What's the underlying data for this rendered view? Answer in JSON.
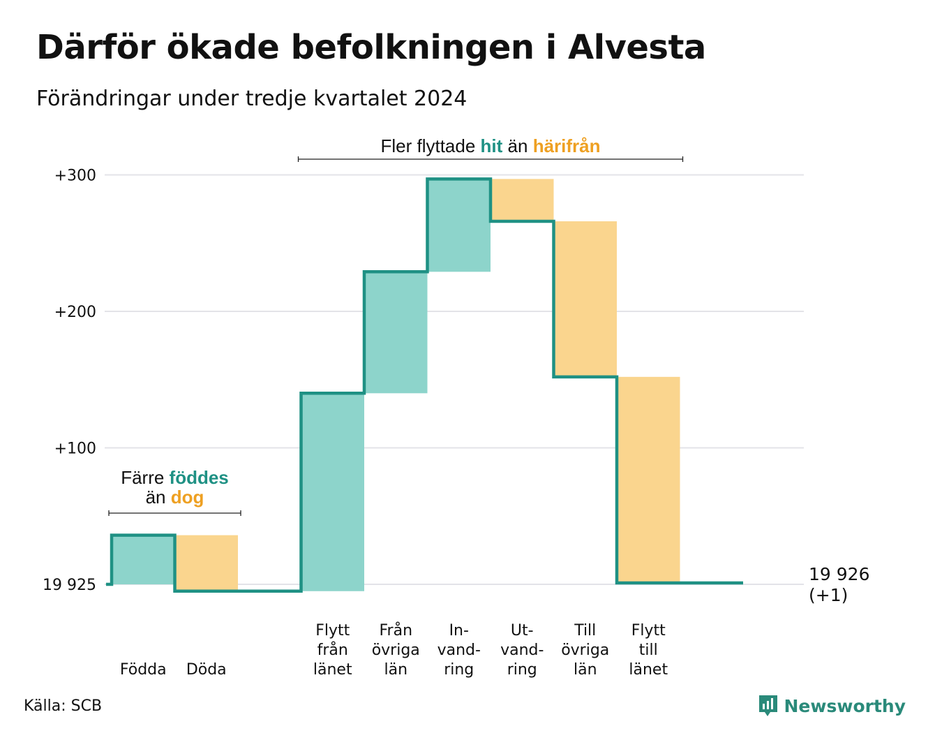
{
  "title": "Därför ökade befolkningen i Alvesta",
  "subtitle": "Förändringar under tredje kvartalet 2024",
  "source": "Källa: SCB",
  "brand": "Newsworthy",
  "brand_icon": "newsworthy-logo-icon",
  "colors": {
    "increase": "#8dd4cb",
    "decrease": "#fad58e",
    "line": "#1f9184",
    "grid": "#e3e3e8"
  },
  "chart_data": {
    "type": "waterfall",
    "baseline": 19925,
    "ylim": [
      -10,
      300
    ],
    "yticks": [
      {
        "value": 0,
        "label": "19 925"
      },
      {
        "value": 100,
        "label": "+100"
      },
      {
        "value": 200,
        "label": "+200"
      },
      {
        "value": 300,
        "label": "+300"
      }
    ],
    "steps": [
      {
        "label": [
          "Födda"
        ],
        "change": 36
      },
      {
        "label": [
          "Döda"
        ],
        "change": -41
      },
      {
        "label": [],
        "change": 0
      },
      {
        "label": [
          "Flytt",
          "från",
          "länet"
        ],
        "change": 145
      },
      {
        "label": [
          "Från",
          "övriga",
          "län"
        ],
        "change": 89
      },
      {
        "label": [
          "In-",
          "vand-",
          "ring"
        ],
        "change": 68
      },
      {
        "label": [
          "Ut-",
          "vand-",
          "ring"
        ],
        "change": -31
      },
      {
        "label": [
          "Till",
          "övriga",
          "län"
        ],
        "change": -114
      },
      {
        "label": [
          "Flytt",
          "till",
          "länet"
        ],
        "change": -151
      },
      {
        "label": [],
        "change": 0
      }
    ],
    "end_label": [
      "19 926",
      "(+1)"
    ],
    "annotations": [
      {
        "parts": [
          [
            "Färre ",
            ""
          ],
          [
            "föddes",
            "increase"
          ]
        ],
        "parts2": [
          [
            "än ",
            ""
          ],
          [
            "dog",
            "decrease"
          ]
        ],
        "steps": [
          0,
          1
        ]
      },
      {
        "parts": [
          [
            "Fler flyttade ",
            ""
          ],
          [
            "hit",
            "increase"
          ],
          [
            " än ",
            ""
          ],
          [
            "härifrån",
            "decrease"
          ]
        ],
        "steps": [
          3,
          8
        ]
      }
    ]
  }
}
